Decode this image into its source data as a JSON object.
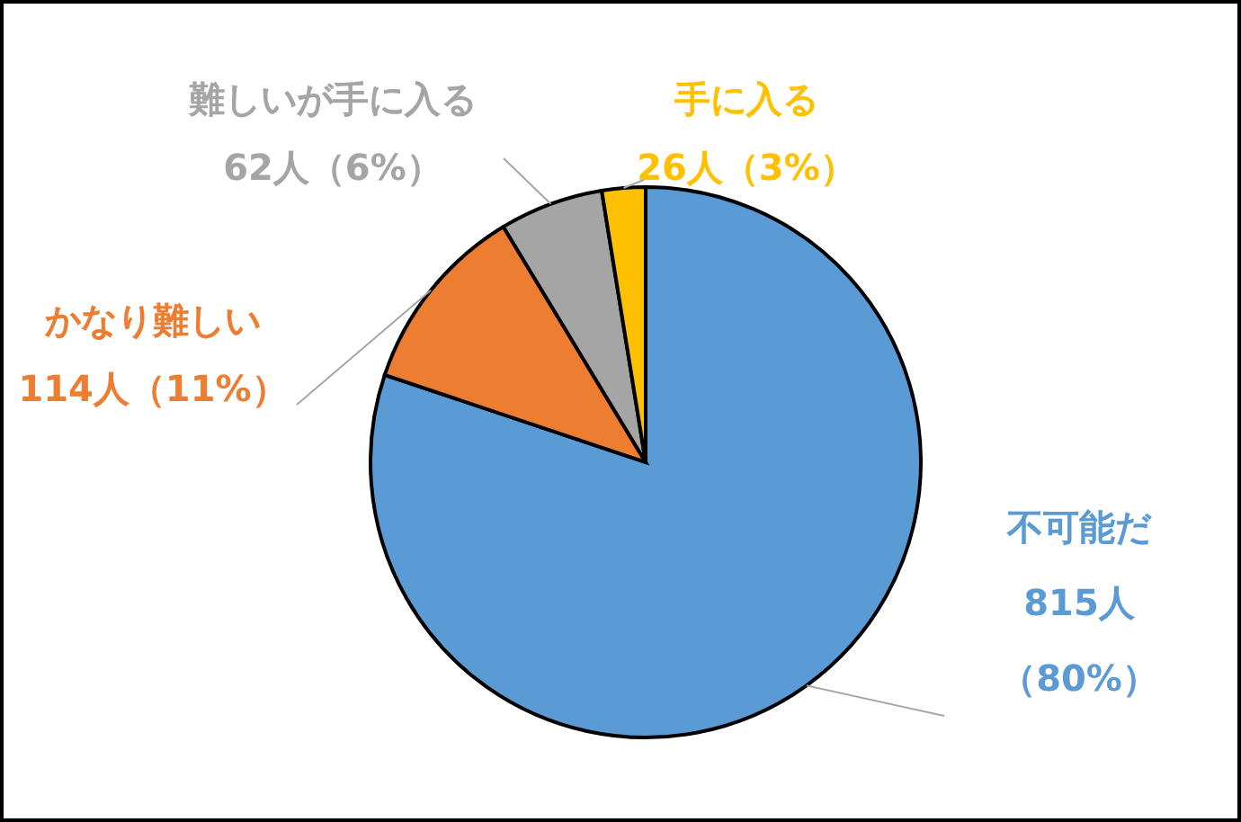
{
  "chart_data": {
    "type": "pie",
    "categories": [
      "不可能だ",
      "かなり難しい",
      "難しいが手に入る",
      "手に入る"
    ],
    "values": [
      815,
      114,
      62,
      26
    ],
    "colors": [
      "#5b9bd5",
      "#ed7d31",
      "#a5a5a5",
      "#ffc000"
    ],
    "value_labels": [
      "815人（80%）",
      "114人（11%）",
      "62人（6%）",
      "26人（3%）"
    ],
    "legend": false
  }
}
